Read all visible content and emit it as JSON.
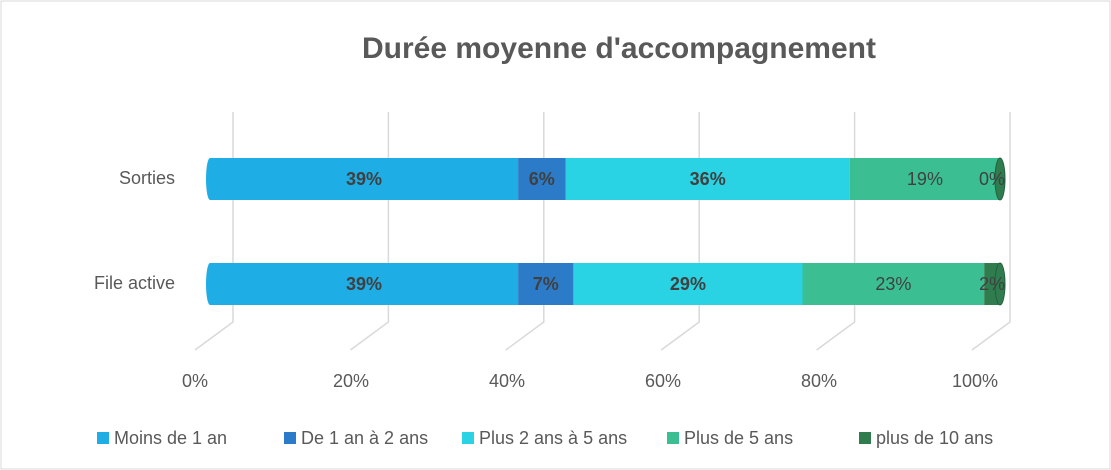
{
  "chart_data": {
    "type": "stacked_bar_horizontal_100",
    "title": "Durée moyenne d'accompagnement",
    "categories": [
      "Sorties",
      "File active"
    ],
    "series": [
      {
        "name": "Moins de 1 an",
        "color": "#1fade6",
        "values": [
          39,
          39
        ],
        "value_labels": [
          "39%",
          "39%"
        ]
      },
      {
        "name": "De 1 an à 2 ans",
        "color": "#2b7bc8",
        "values": [
          6,
          7
        ],
        "value_labels": [
          "6%",
          "7%"
        ]
      },
      {
        "name": "Plus 2 ans à 5 ans",
        "color": "#29d3e3",
        "values": [
          36,
          29
        ],
        "value_labels": [
          "36%",
          "29%"
        ]
      },
      {
        "name": "Plus de 5 ans",
        "color": "#3bbf92",
        "values": [
          19,
          23
        ],
        "value_labels": [
          "19%",
          "23%"
        ]
      },
      {
        "name": "plus de 10 ans",
        "color": "#2f7d4f",
        "values": [
          0,
          2
        ],
        "value_labels": [
          "0%",
          "2%"
        ]
      }
    ],
    "xlim": [
      0,
      100
    ],
    "xticks": [
      {
        "value": 0,
        "label": "0%"
      },
      {
        "value": 20,
        "label": "20%"
      },
      {
        "value": 40,
        "label": "40%"
      },
      {
        "value": 60,
        "label": "60%"
      },
      {
        "value": 80,
        "label": "80%"
      },
      {
        "value": 100,
        "label": "100%"
      }
    ],
    "grid": true,
    "legend": "bottom"
  }
}
